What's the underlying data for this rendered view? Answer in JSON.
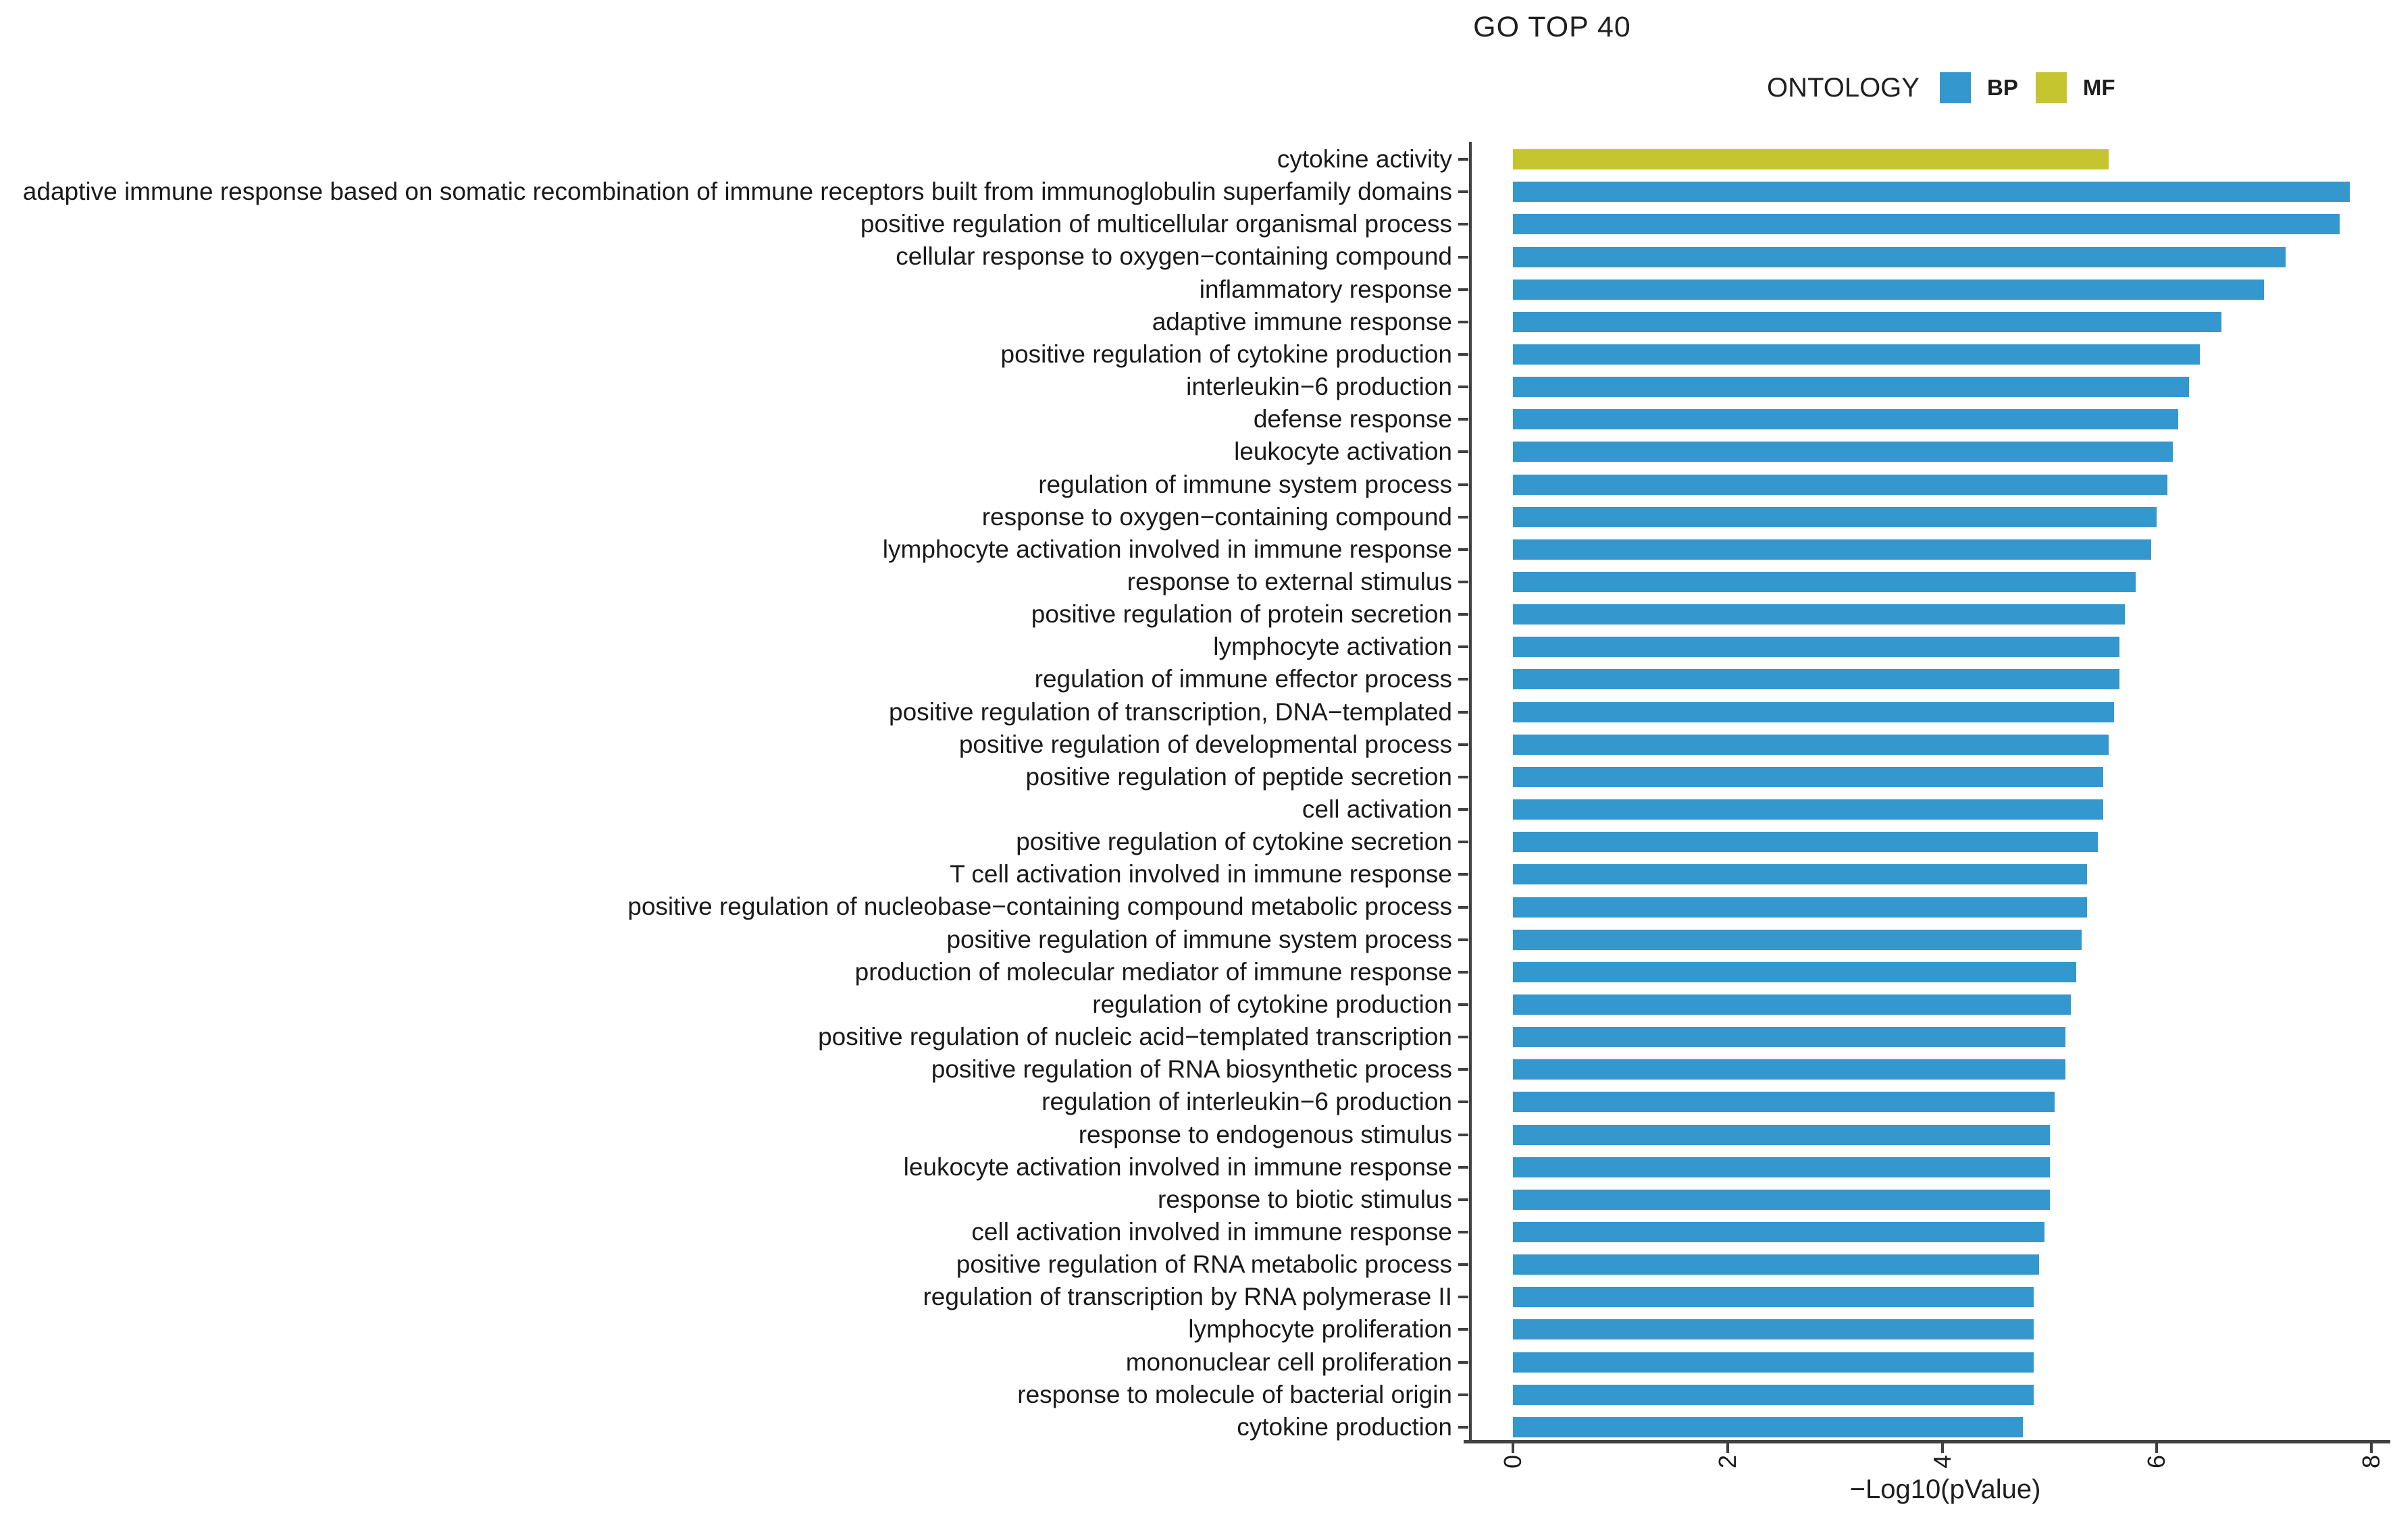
{
  "title": "GO TOP 40",
  "legend": {
    "title": "ONTOLOGY",
    "items": [
      {
        "label": "BP",
        "color": "#3497CE"
      },
      {
        "label": "MF",
        "color": "#C5C530"
      }
    ]
  },
  "axis": {
    "x_label": "−Log10(pValue)",
    "x_ticks": [
      "0",
      "2",
      "4",
      "6",
      "8"
    ]
  },
  "chart_data": {
    "type": "bar",
    "orientation": "horizontal",
    "title": "GO TOP 40",
    "xlabel": "−Log10(pValue)",
    "ylabel": "",
    "xlim": [
      0,
      8.2
    ],
    "grid": false,
    "legend_position": "top-right",
    "series_colors": {
      "BP": "#3497CE",
      "MF": "#C5C530"
    },
    "bars": [
      {
        "term": "cytokine activity",
        "ontology": "MF",
        "value": 5.55
      },
      {
        "term": "adaptive immune response based on somatic recombination of immune receptors built from immunoglobulin superfamily domains",
        "ontology": "BP",
        "value": 7.8
      },
      {
        "term": "positive regulation of multicellular organismal process",
        "ontology": "BP",
        "value": 7.7
      },
      {
        "term": "cellular response to oxygen−containing compound",
        "ontology": "BP",
        "value": 7.2
      },
      {
        "term": "inflammatory response",
        "ontology": "BP",
        "value": 7.0
      },
      {
        "term": "adaptive immune response",
        "ontology": "BP",
        "value": 6.6
      },
      {
        "term": "positive regulation of cytokine production",
        "ontology": "BP",
        "value": 6.4
      },
      {
        "term": "interleukin−6 production",
        "ontology": "BP",
        "value": 6.3
      },
      {
        "term": "defense response",
        "ontology": "BP",
        "value": 6.2
      },
      {
        "term": "leukocyte activation",
        "ontology": "BP",
        "value": 6.15
      },
      {
        "term": "regulation of immune system process",
        "ontology": "BP",
        "value": 6.1
      },
      {
        "term": "response to oxygen−containing compound",
        "ontology": "BP",
        "value": 6.0
      },
      {
        "term": "lymphocyte activation involved in immune response",
        "ontology": "BP",
        "value": 5.95
      },
      {
        "term": "response to external stimulus",
        "ontology": "BP",
        "value": 5.8
      },
      {
        "term": "positive regulation of protein secretion",
        "ontology": "BP",
        "value": 5.7
      },
      {
        "term": "lymphocyte activation",
        "ontology": "BP",
        "value": 5.65
      },
      {
        "term": "regulation of immune effector process",
        "ontology": "BP",
        "value": 5.65
      },
      {
        "term": "positive regulation of transcription, DNA−templated",
        "ontology": "BP",
        "value": 5.6
      },
      {
        "term": "positive regulation of developmental process",
        "ontology": "BP",
        "value": 5.55
      },
      {
        "term": "positive regulation of peptide secretion",
        "ontology": "BP",
        "value": 5.5
      },
      {
        "term": "cell activation",
        "ontology": "BP",
        "value": 5.5
      },
      {
        "term": "positive regulation of cytokine secretion",
        "ontology": "BP",
        "value": 5.45
      },
      {
        "term": "T cell activation involved in immune response",
        "ontology": "BP",
        "value": 5.35
      },
      {
        "term": "positive regulation of nucleobase−containing compound metabolic process",
        "ontology": "BP",
        "value": 5.35
      },
      {
        "term": "positive regulation of immune system process",
        "ontology": "BP",
        "value": 5.3
      },
      {
        "term": "production of molecular mediator of immune response",
        "ontology": "BP",
        "value": 5.25
      },
      {
        "term": "regulation of cytokine production",
        "ontology": "BP",
        "value": 5.2
      },
      {
        "term": "positive regulation of nucleic acid−templated transcription",
        "ontology": "BP",
        "value": 5.15
      },
      {
        "term": "positive regulation of RNA biosynthetic process",
        "ontology": "BP",
        "value": 5.15
      },
      {
        "term": "regulation of interleukin−6 production",
        "ontology": "BP",
        "value": 5.05
      },
      {
        "term": "response to endogenous stimulus",
        "ontology": "BP",
        "value": 5.0
      },
      {
        "term": "leukocyte activation involved in immune response",
        "ontology": "BP",
        "value": 5.0
      },
      {
        "term": "response to biotic stimulus",
        "ontology": "BP",
        "value": 5.0
      },
      {
        "term": "cell activation involved in immune response",
        "ontology": "BP",
        "value": 4.95
      },
      {
        "term": "positive regulation of RNA metabolic process",
        "ontology": "BP",
        "value": 4.9
      },
      {
        "term": "regulation of transcription by RNA polymerase II",
        "ontology": "BP",
        "value": 4.85
      },
      {
        "term": "lymphocyte proliferation",
        "ontology": "BP",
        "value": 4.85
      },
      {
        "term": "mononuclear cell proliferation",
        "ontology": "BP",
        "value": 4.85
      },
      {
        "term": "response to molecule of bacterial origin",
        "ontology": "BP",
        "value": 4.85
      },
      {
        "term": "cytokine production",
        "ontology": "BP",
        "value": 4.75
      }
    ]
  }
}
